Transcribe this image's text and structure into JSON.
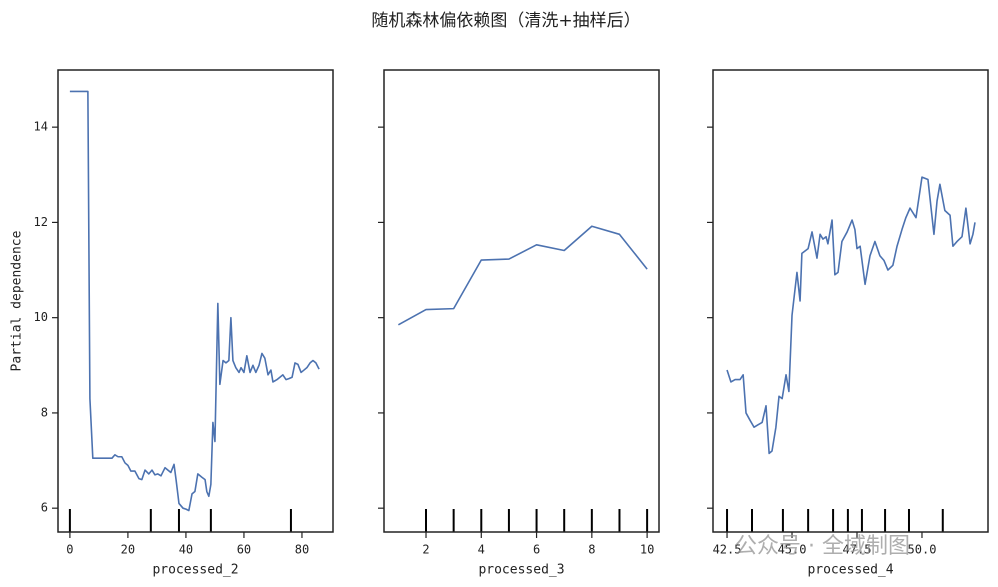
{
  "title": "随机森林偏依赖图（清洗+抽样后）",
  "watermark": "公众号 · 全域制图",
  "chart_data": [
    {
      "type": "line",
      "xlabel": "processed_2",
      "ylabel": "Partial dependence",
      "color": "#4c72b0",
      "xlim": [
        -4.1,
        90.7
      ],
      "xticks": [
        0,
        20,
        40,
        60,
        80
      ],
      "ylim": [
        5.5,
        15.2
      ],
      "yticks": [
        6,
        8,
        10,
        12,
        14
      ],
      "rug": [
        0,
        27.9,
        37.6,
        48.6,
        76.2
      ],
      "x": [
        0,
        6.2,
        6.9,
        7.9,
        14.5,
        15.5,
        16.6,
        17.9,
        19,
        20,
        21,
        22.4,
        23.8,
        24.8,
        25.9,
        27.2,
        28.3,
        29.3,
        30.3,
        31.4,
        32.8,
        33.8,
        34.8,
        35.9,
        36.6,
        37.6,
        39,
        40,
        41,
        42.1,
        43.1,
        44.1,
        45.5,
        46.6,
        47.2,
        47.9,
        48.6,
        49.3,
        50,
        51,
        51.7,
        52.8,
        53.8,
        54.8,
        55.5,
        56.2,
        57.2,
        58.3,
        59,
        60,
        61,
        62.1,
        63.1,
        64.1,
        65.2,
        66.2,
        67.2,
        68.3,
        69.3,
        70,
        71.4,
        72.4,
        73.4,
        74.5,
        75.5,
        76.6,
        77.6,
        78.6,
        79.7,
        80.7,
        81.7,
        82.8,
        83.8,
        84.8,
        85.9
      ],
      "values": [
        14.75,
        14.75,
        8.3,
        7.05,
        7.05,
        7.12,
        7.08,
        7.08,
        6.95,
        6.9,
        6.78,
        6.78,
        6.62,
        6.6,
        6.8,
        6.72,
        6.8,
        6.7,
        6.72,
        6.68,
        6.85,
        6.8,
        6.75,
        6.92,
        6.6,
        6.1,
        6.0,
        5.98,
        5.95,
        6.3,
        6.35,
        6.72,
        6.65,
        6.6,
        6.35,
        6.25,
        6.5,
        7.8,
        7.4,
        10.3,
        8.6,
        9.1,
        9.05,
        9.1,
        10.0,
        9.1,
        8.95,
        8.85,
        8.95,
        8.85,
        9.2,
        8.85,
        9.0,
        8.85,
        9.0,
        9.25,
        9.15,
        8.8,
        8.9,
        8.65,
        8.7,
        8.75,
        8.8,
        8.7,
        8.72,
        8.75,
        9.05,
        9.02,
        8.85,
        8.9,
        8.95,
        9.05,
        9.1,
        9.05,
        8.92
      ]
    },
    {
      "type": "line",
      "xlabel": "processed_3",
      "color": "#4c72b0",
      "xlim": [
        0.48,
        10.43
      ],
      "xticks": [
        2,
        4,
        6,
        8,
        10
      ],
      "ylim": [
        5.5,
        15.2
      ],
      "yticks": [
        6,
        8,
        10,
        12,
        14
      ],
      "rug": [
        2,
        3,
        4,
        5,
        6,
        7,
        8,
        9,
        10
      ],
      "x": [
        1,
        2,
        3,
        4,
        5,
        6,
        7,
        8,
        9,
        10
      ],
      "values": [
        9.85,
        10.17,
        10.19,
        11.21,
        11.23,
        11.53,
        11.41,
        11.92,
        11.75,
        11.02
      ]
    },
    {
      "type": "line",
      "xlabel": "processed_4",
      "color": "#4c72b0",
      "xlim": [
        41.96,
        52.54
      ],
      "xticks": [
        {
          "value": 42.5,
          "label": "42.5"
        },
        {
          "value": 45,
          "label": "45.0"
        },
        {
          "value": 47.5,
          "label": "47.5"
        },
        {
          "value": 50,
          "label": "50.0"
        }
      ],
      "ylim": [
        5.5,
        15.2
      ],
      "yticks": [
        6,
        8,
        10,
        12,
        14
      ],
      "rug": [
        42.5,
        43.46,
        44.65,
        45.62,
        46.58,
        47.15,
        47.69,
        48.58,
        49.5,
        50.8
      ],
      "x": [
        42.5,
        42.65,
        42.81,
        43.0,
        43.12,
        43.23,
        43.38,
        43.54,
        43.69,
        43.85,
        44.0,
        44.12,
        44.23,
        44.38,
        44.5,
        44.62,
        44.77,
        44.88,
        45.0,
        45.19,
        45.31,
        45.38,
        45.62,
        45.77,
        45.96,
        46.08,
        46.19,
        46.31,
        46.38,
        46.54,
        46.65,
        46.77,
        46.92,
        47.12,
        47.31,
        47.42,
        47.5,
        47.62,
        47.81,
        48.0,
        48.19,
        48.38,
        48.54,
        48.69,
        48.88,
        49.04,
        49.23,
        49.38,
        49.54,
        49.77,
        50.0,
        50.23,
        50.35,
        50.46,
        50.58,
        50.69,
        50.88,
        51.08,
        51.19,
        51.35,
        51.54,
        51.69,
        51.85,
        51.96,
        52.04
      ],
      "values": [
        8.9,
        8.65,
        8.7,
        8.7,
        8.8,
        8.0,
        7.85,
        7.7,
        7.75,
        7.8,
        8.15,
        7.15,
        7.2,
        7.7,
        8.35,
        8.3,
        8.8,
        8.45,
        10.05,
        10.95,
        10.35,
        11.35,
        11.45,
        11.8,
        11.25,
        11.75,
        11.65,
        11.7,
        11.55,
        12.05,
        10.9,
        10.95,
        11.6,
        11.8,
        12.05,
        11.85,
        11.45,
        11.5,
        10.7,
        11.3,
        11.6,
        11.3,
        11.2,
        11.0,
        11.1,
        11.5,
        11.85,
        12.1,
        12.3,
        12.1,
        12.95,
        12.9,
        12.3,
        11.75,
        12.45,
        12.8,
        12.25,
        12.15,
        11.5,
        11.6,
        11.7,
        12.3,
        11.55,
        11.75,
        12.0
      ]
    }
  ]
}
